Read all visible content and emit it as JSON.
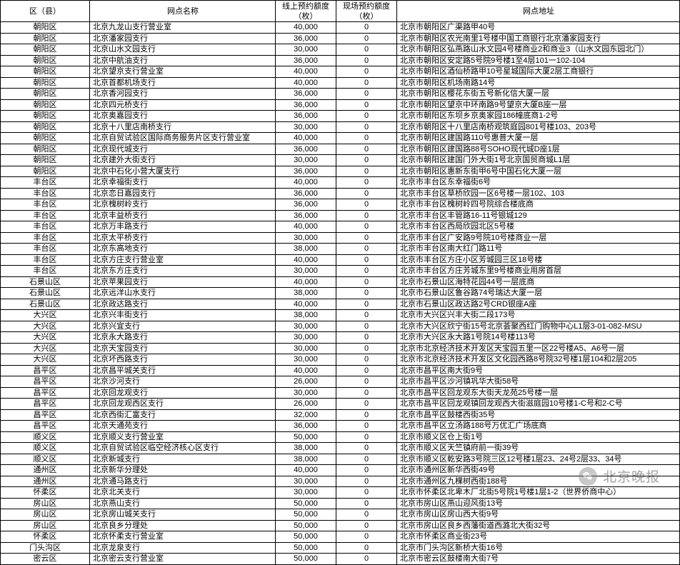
{
  "header": {
    "district": "区（县）",
    "name": "网点名称",
    "online": "线上预约额度（枚）",
    "onsite": "现场预约额度（枚）",
    "addr": "网点地址"
  },
  "watermark": "北京晚报",
  "rows": [
    {
      "d": "朝阳区",
      "n": "北京九龙山支行营业室",
      "o": "40,000",
      "s": "0",
      "a": "北京市朝阳区广渠路甲40号"
    },
    {
      "d": "朝阳区",
      "n": "北京潘家园支行",
      "o": "36,000",
      "s": "0",
      "a": "北京市朝阳区农光南里1号楼中国工商银行北京潘家园支行"
    },
    {
      "d": "朝阳区",
      "n": "北京山水文园支行",
      "o": "30,000",
      "s": "0",
      "a": "北京市朝阳区弘燕路山水文园4号楼商业2和商业3（山水文园东园北门）"
    },
    {
      "d": "朝阳区",
      "n": "北京中航油支行",
      "o": "36,000",
      "s": "0",
      "a": "北京市朝阳区安定路5号院9号楼1至4层101一102-104"
    },
    {
      "d": "朝阳区",
      "n": "北京望京支行营业室",
      "o": "40,000",
      "s": "0",
      "a": "北京市朝阳区酒仙桥路甲10号星城国际大厦2层工商银行"
    },
    {
      "d": "朝阳区",
      "n": "北京首都机场支行",
      "o": "40,000",
      "s": "0",
      "a": "北京市朝阳区机场南路14号"
    },
    {
      "d": "朝阳区",
      "n": "北京香河园支行",
      "o": "36,000",
      "s": "0",
      "a": "北京市朝阳区樱花东街五号新化信大厦一层"
    },
    {
      "d": "朝阳区",
      "n": "北京四元桥支行",
      "o": "36,000",
      "s": "0",
      "a": "北京市朝阳区望京中环南路9号望京大厦B座一层"
    },
    {
      "d": "朝阳区",
      "n": "北京奥嘉园支行",
      "o": "36,000",
      "s": "0",
      "a": "北京市朝阳区东坝乡京奥家园186幢底商1-2号"
    },
    {
      "d": "朝阳区",
      "n": "北京十八里店南桥支行",
      "o": "30,000",
      "s": "0",
      "a": "北京市朝阳区十八里店南桥观筑庭园801号楼103、203号"
    },
    {
      "d": "朝阳区",
      "n": "北京自贸试验区国际商务服务片区支行营业室",
      "o": "40,000",
      "s": "0",
      "a": "北京市朝阳区建国路110号惠普大厦一层"
    },
    {
      "d": "朝阳区",
      "n": "北京现代城支行",
      "o": "36,000",
      "s": "0",
      "a": "北京市朝阳区建国路88号SOHO现代城D座1层"
    },
    {
      "d": "朝阳区",
      "n": "北京建外大街支行",
      "o": "30,000",
      "s": "0",
      "a": "北京市朝阳区建国门外大街1号北京国贸商城L1层"
    },
    {
      "d": "朝阳区",
      "n": "北京中石化小营大厦支行",
      "o": "36,000",
      "s": "0",
      "a": "北京市朝阳区惠新东街甲6号中国石化大厦一层"
    },
    {
      "d": "丰台区",
      "n": "北京幸福街支行",
      "o": "40,000",
      "s": "0",
      "a": "北京市丰台区东幸福街6号"
    },
    {
      "d": "丰台区",
      "n": "北京恋日嘉园支行",
      "o": "36,000",
      "s": "0",
      "a": "北京市丰台区草桥欣园一区6号楼一层102、103"
    },
    {
      "d": "丰台区",
      "n": "北京槐树岭支行",
      "o": "36,000",
      "s": "0",
      "a": "北京市丰台区槐树岭四号院综合楼底商"
    },
    {
      "d": "丰台区",
      "n": "北京丰益桥支行",
      "o": "36,000",
      "s": "0",
      "a": "北京市丰台区丰管路16-11号银城129"
    },
    {
      "d": "丰台区",
      "n": "北京万丰路支行",
      "o": "40,000",
      "s": "0",
      "a": "北京市丰台区西局欣园北区5号楼"
    },
    {
      "d": "丰台区",
      "n": "北京太平桥支行",
      "o": "30,000",
      "s": "0",
      "a": "北京市丰台区广安路9号院10号楼商业一层"
    },
    {
      "d": "丰台区",
      "n": "北京东高地支行",
      "o": "38,000",
      "s": "0",
      "a": "北京市丰台区南大红门路11号"
    },
    {
      "d": "丰台区",
      "n": "北京方庄支行营业室",
      "o": "40,000",
      "s": "0",
      "a": "北京市丰台区方庄小区芳城园三区18号楼"
    },
    {
      "d": "丰台区",
      "n": "北京东方庄支行",
      "o": "30,000",
      "s": "0",
      "a": "北京市丰台区方庄芳城东里9号楼商业用房首层"
    },
    {
      "d": "石景山区",
      "n": "北京苹果园支行",
      "o": "40,000",
      "s": "0",
      "a": "北京市石景山区海特花园44号一层底商"
    },
    {
      "d": "石景山区",
      "n": "北京远洋山水支行",
      "o": "38,000",
      "s": "0",
      "a": "北京市石景山区鲁谷路74号瑞达大厦一层"
    },
    {
      "d": "石景山区",
      "n": "北京政达路支行",
      "o": "40,000",
      "s": "0",
      "a": "北京市石景山区政达路2号CRD银座A座"
    },
    {
      "d": "大兴区",
      "n": "北京兴丰街支行",
      "o": "38,000",
      "s": "0",
      "a": "北京市大兴区兴丰大街二段173号"
    },
    {
      "d": "大兴区",
      "n": "北京兴宜支行",
      "o": "30,000",
      "s": "0",
      "a": "北京市大兴区欣宁街15号北京荟聚西红门购物中心L1层3-01-082-MSU"
    },
    {
      "d": "大兴区",
      "n": "北京永大路支行",
      "o": "30,000",
      "s": "0",
      "a": "北京市大兴区永大路1号院14号楼113号"
    },
    {
      "d": "大兴区",
      "n": "北京天宝园支行",
      "o": "30,000",
      "s": "0",
      "a": "北京市北京经济技术开发区天宝园五里一区22号楼A5、A6号一层"
    },
    {
      "d": "大兴区",
      "n": "北京坏西路支行",
      "o": "30,000",
      "s": "0",
      "a": "北京市北京经济技术开发区文化园西路8号院32号楼1层104和2层205"
    },
    {
      "d": "昌平区",
      "n": "北京昌平城关支行",
      "o": "40,000",
      "s": "0",
      "a": "北京市昌平区南大街9号"
    },
    {
      "d": "昌平区",
      "n": "北京沙河支行",
      "o": "26,000",
      "s": "0",
      "a": "北京市昌平区沙河镇巩华大街58号"
    },
    {
      "d": "昌平区",
      "n": "北京回龙观支行",
      "o": "30,000",
      "s": "0",
      "a": "北京市昌平区回龙观东大街天龙苑25号楼一层"
    },
    {
      "d": "昌平区",
      "n": "北京回龙观西区支行",
      "o": "26,000",
      "s": "0",
      "a": "北京市昌平区回龙观镇回龙观西大街滋庭园10号楼1-C号和2-C号"
    },
    {
      "d": "昌平区",
      "n": "北京西街汇富支行",
      "o": "32,000",
      "s": "0",
      "a": "北京市昌平区鼓楼西街35号"
    },
    {
      "d": "昌平区",
      "n": "北京天通苑支行",
      "o": "36,000",
      "s": "0",
      "a": "北京市昌平区立汤路188号万优汇广场底商"
    },
    {
      "d": "顺义区",
      "n": "北京顺义支行营业室",
      "o": "50,000",
      "s": "0",
      "a": "北京市顺义区仓上街1号"
    },
    {
      "d": "顺义区",
      "n": "北京自贸试验区临空经济核心区支行",
      "o": "38,000",
      "s": "0",
      "a": "北京市顺义区天竺镇府前一街39号"
    },
    {
      "d": "顺义区",
      "n": "北京新城支行",
      "o": "38,000",
      "s": "0",
      "a": "北京市顺义区乾安路3号院三区12号楼1层23、24号2层33、34号"
    },
    {
      "d": "通州区",
      "n": "北京新华分理处",
      "o": "40,000",
      "s": "0",
      "a": "北京市通州区新华西街49号"
    },
    {
      "d": "通州区",
      "n": "北京通马路支行",
      "o": "30,000",
      "s": "0",
      "a": "北京市通州区九棵树西街188号"
    },
    {
      "d": "怀柔区",
      "n": "北京北关支行",
      "o": "30,000",
      "s": "0",
      "a": "北京市怀柔区北卑木厂北街5号院1号楼1层1-2（世界侨商中心）"
    },
    {
      "d": "房山区",
      "n": "北京燕山支行",
      "o": "50,000",
      "s": "0",
      "a": "北京市房山区燕山迎风街13号"
    },
    {
      "d": "房山区",
      "n": "北京房山城关支行",
      "o": "50,000",
      "s": "0",
      "a": "北京市房山区房山西大街9号"
    },
    {
      "d": "房山区",
      "n": "北京良乡分理处",
      "o": "50,000",
      "s": "0",
      "a": "北京市房山区良乡西藩街道西潞北大街32号"
    },
    {
      "d": "怀柔区",
      "n": "北京怀柔支行营业室",
      "o": "50,000",
      "s": "0",
      "a": "北京市怀柔区商业街23号"
    },
    {
      "d": "门头沟区",
      "n": "北京龙泉支行",
      "o": "50,000",
      "s": "0",
      "a": "北京市门头沟区新桥大街16号"
    },
    {
      "d": "密云区",
      "n": "北京密云支行营业室",
      "o": "50,000",
      "s": "0",
      "a": "北京市密云区鼓楼南大街7号"
    }
  ]
}
